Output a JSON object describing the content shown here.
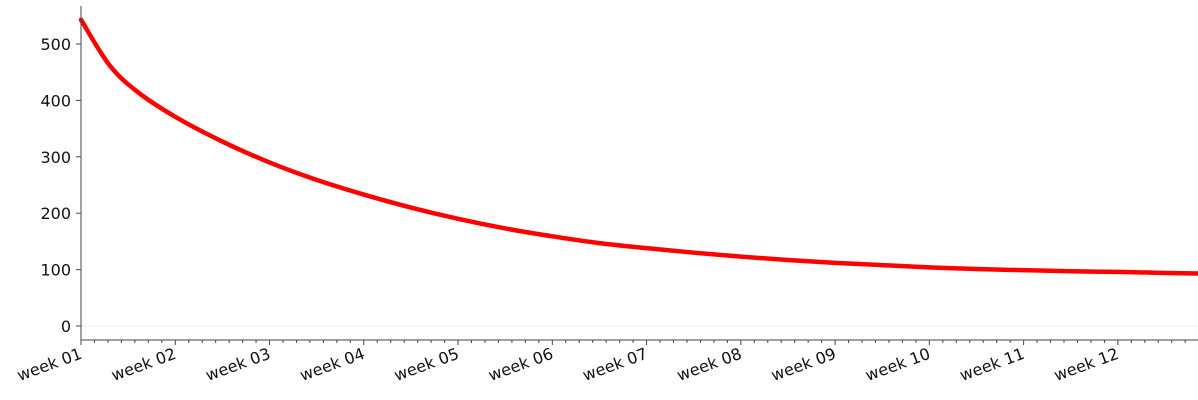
{
  "chart_data": {
    "type": "line",
    "title": "",
    "xlabel": "",
    "ylabel": "",
    "grid": false,
    "legend": "none",
    "categories": [
      "week 01",
      "week 02",
      "week 03",
      "week 04",
      "week 05",
      "week 06",
      "week 07",
      "week 08",
      "week 09",
      "week 10",
      "week 11",
      "week 12"
    ],
    "x_range": [
      1,
      12.85
    ],
    "ylim": [
      0,
      560
    ],
    "y_ticks": [
      0,
      100,
      200,
      300,
      400,
      500
    ],
    "series": [
      {
        "color": "#ff0000",
        "x": [
          1,
          1.3,
          1.6,
          2,
          2.5,
          3,
          3.5,
          4,
          4.5,
          5,
          5.5,
          6,
          6.5,
          7,
          7.5,
          8,
          8.5,
          9,
          9.5,
          10,
          10.5,
          11,
          11.5,
          12,
          12.5,
          12.85
        ],
        "values": [
          543,
          463,
          415,
          371,
          327,
          290,
          259,
          233,
          210,
          190,
          173,
          159,
          147,
          138,
          130,
          123,
          117,
          112,
          108,
          104,
          101,
          99,
          97,
          96,
          94,
          93
        ]
      }
    ]
  }
}
